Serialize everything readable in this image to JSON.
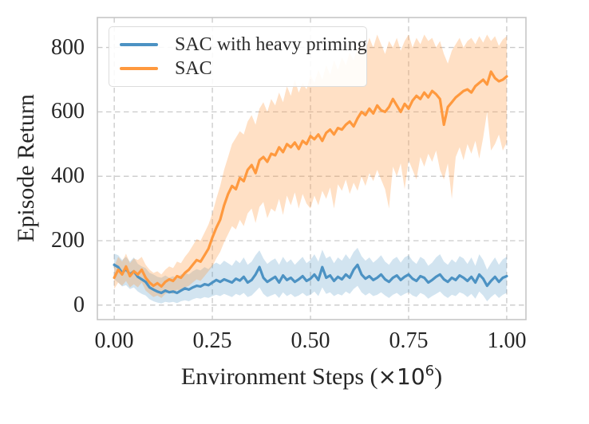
{
  "figure": {
    "background": "#ffffff"
  },
  "chart_data": {
    "type": "line",
    "title": "",
    "xlabel": "Environment Steps (×10⁶)",
    "xlabel_parts": {
      "prefix": "Environment Steps (",
      "base": "×10",
      "exponent": "6",
      "suffix": ")"
    },
    "ylabel": "Episode Return",
    "xlim": [
      -0.043,
      1.049
    ],
    "ylim": [
      -45,
      893
    ],
    "grid": "dashed-both-axes",
    "legend_position": "upper-left",
    "xtick_values": [
      0,
      0.25,
      0.5,
      0.75,
      1.0
    ],
    "xtick_labels": [
      "0.00",
      "0.25",
      "0.50",
      "0.75",
      "1.00"
    ],
    "ytick_values": [
      0,
      200,
      400,
      600,
      800
    ],
    "ytick_labels": [
      "0",
      "200",
      "400",
      "600",
      "800"
    ],
    "colors": {
      "grid": "#c9c9c9",
      "spine": "#c6c6c6",
      "text": "#262626"
    },
    "x": {
      "start": 0,
      "step": 0.01,
      "count": 101
    },
    "series": [
      {
        "name": "SAC with heavy priming",
        "color": "#4c92c3",
        "band_color": "rgba(76,146,195,0.25)",
        "mean": [
          125,
          118,
          100,
          112,
          95,
          105,
          88,
          80,
          72,
          55,
          48,
          42,
          38,
          45,
          40,
          42,
          38,
          45,
          52,
          48,
          55,
          60,
          58,
          65,
          62,
          70,
          78,
          72,
          80,
          75,
          70,
          82,
          76,
          88,
          70,
          78,
          95,
          118,
          85,
          72,
          80,
          88,
          70,
          92,
          78,
          85,
          72,
          80,
          90,
          75,
          82,
          95,
          78,
          118,
          85,
          92,
          75,
          88,
          80,
          95,
          85,
          110,
          125,
          95,
          82,
          90,
          78,
          85,
          95,
          80,
          72,
          85,
          92,
          78,
          88,
          95,
          82,
          75,
          90,
          85,
          70,
          78,
          88,
          95,
          80,
          72,
          85,
          78,
          92,
          85,
          75,
          88,
          70,
          95,
          82,
          60,
          75,
          88,
          72,
          85,
          90
        ],
        "lower": [
          80,
          70,
          58,
          62,
          50,
          55,
          42,
          35,
          30,
          18,
          12,
          8,
          5,
          10,
          8,
          10,
          6,
          12,
          15,
          12,
          18,
          22,
          20,
          25,
          22,
          28,
          32,
          28,
          35,
          30,
          25,
          35,
          30,
          38,
          25,
          30,
          42,
          55,
          35,
          25,
          30,
          35,
          22,
          40,
          28,
          35,
          25,
          30,
          38,
          28,
          32,
          42,
          28,
          55,
          35,
          40,
          28,
          35,
          30,
          42,
          35,
          50,
          60,
          40,
          30,
          38,
          28,
          32,
          40,
          30,
          22,
          32,
          38,
          28,
          35,
          40,
          30,
          25,
          38,
          32,
          20,
          28,
          35,
          42,
          30,
          22,
          32,
          28,
          40,
          35,
          25,
          35,
          20,
          42,
          30,
          12,
          25,
          35,
          22,
          32,
          38
        ],
        "upper": [
          160,
          155,
          140,
          150,
          135,
          148,
          128,
          120,
          115,
          100,
          95,
          88,
          85,
          92,
          85,
          90,
          82,
          95,
          100,
          95,
          105,
          112,
          108,
          118,
          112,
          125,
          132,
          125,
          138,
          130,
          122,
          140,
          130,
          148,
          125,
          135,
          155,
          170,
          145,
          128,
          138,
          145,
          125,
          150,
          132,
          142,
          125,
          138,
          150,
          130,
          140,
          158,
          135,
          172,
          145,
          152,
          130,
          148,
          138,
          158,
          142,
          165,
          178,
          152,
          138,
          148,
          132,
          142,
          155,
          135,
          125,
          142,
          150,
          132,
          148,
          155,
          138,
          128,
          150,
          142,
          122,
          132,
          148,
          158,
          135,
          125,
          142,
          132,
          152,
          145,
          128,
          148,
          122,
          158,
          140,
          110,
          130,
          148,
          125,
          142,
          150
        ]
      },
      {
        "name": "SAC",
        "color": "#ff993e",
        "band_color": "rgba(255,153,62,0.3)",
        "mean": [
          85,
          110,
          95,
          120,
          90,
          105,
          95,
          110,
          85,
          70,
          60,
          68,
          58,
          72,
          80,
          75,
          90,
          85,
          100,
          110,
          125,
          140,
          135,
          155,
          175,
          210,
          240,
          265,
          310,
          345,
          370,
          360,
          395,
          385,
          420,
          435,
          410,
          450,
          460,
          445,
          470,
          465,
          490,
          475,
          500,
          490,
          505,
          485,
          510,
          500,
          525,
          515,
          530,
          510,
          535,
          545,
          530,
          550,
          545,
          560,
          570,
          555,
          580,
          600,
          590,
          610,
          595,
          620,
          605,
          600,
          615,
          640,
          620,
          600,
          625,
          610,
          635,
          650,
          640,
          660,
          645,
          665,
          655,
          640,
          560,
          615,
          630,
          645,
          655,
          665,
          670,
          660,
          680,
          690,
          700,
          685,
          725,
          705,
          695,
          700,
          710
        ],
        "lower": [
          50,
          70,
          60,
          75,
          55,
          65,
          55,
          70,
          45,
          35,
          25,
          30,
          22,
          35,
          40,
          35,
          48,
          42,
          55,
          60,
          70,
          80,
          75,
          90,
          105,
          120,
          145,
          165,
          195,
          220,
          245,
          235,
          265,
          245,
          285,
          300,
          255,
          305,
          320,
          270,
          300,
          290,
          330,
          280,
          340,
          310,
          350,
          300,
          345,
          315,
          300,
          340,
          310,
          355,
          330,
          365,
          300,
          375,
          355,
          390,
          345,
          380,
          355,
          400,
          370,
          410,
          385,
          420,
          390,
          360,
          300,
          430,
          400,
          440,
          360,
          450,
          420,
          390,
          460,
          430,
          470,
          445,
          480,
          420,
          390,
          440,
          330,
          460,
          490,
          450,
          500,
          470,
          510,
          455,
          520,
          600,
          480,
          500,
          530,
          480,
          505
        ],
        "upper": [
          120,
          150,
          135,
          160,
          130,
          145,
          140,
          150,
          125,
          110,
          100,
          105,
          95,
          110,
          120,
          115,
          135,
          130,
          150,
          165,
          185,
          205,
          200,
          225,
          250,
          285,
          330,
          370,
          420,
          460,
          500,
          520,
          540,
          530,
          570,
          590,
          560,
          610,
          630,
          600,
          640,
          620,
          660,
          630,
          680,
          650,
          700,
          660,
          690,
          670,
          715,
          690,
          730,
          700,
          745,
          715,
          760,
          730,
          770,
          745,
          785,
          760,
          800,
          820,
          790,
          830,
          800,
          840,
          810,
          780,
          820,
          800,
          830,
          790,
          820,
          840,
          800,
          830,
          810,
          840,
          820,
          830,
          800,
          820,
          780,
          750,
          790,
          810,
          830,
          800,
          820,
          830,
          810,
          835,
          815,
          840,
          820,
          835,
          805,
          825,
          835
        ]
      }
    ]
  }
}
